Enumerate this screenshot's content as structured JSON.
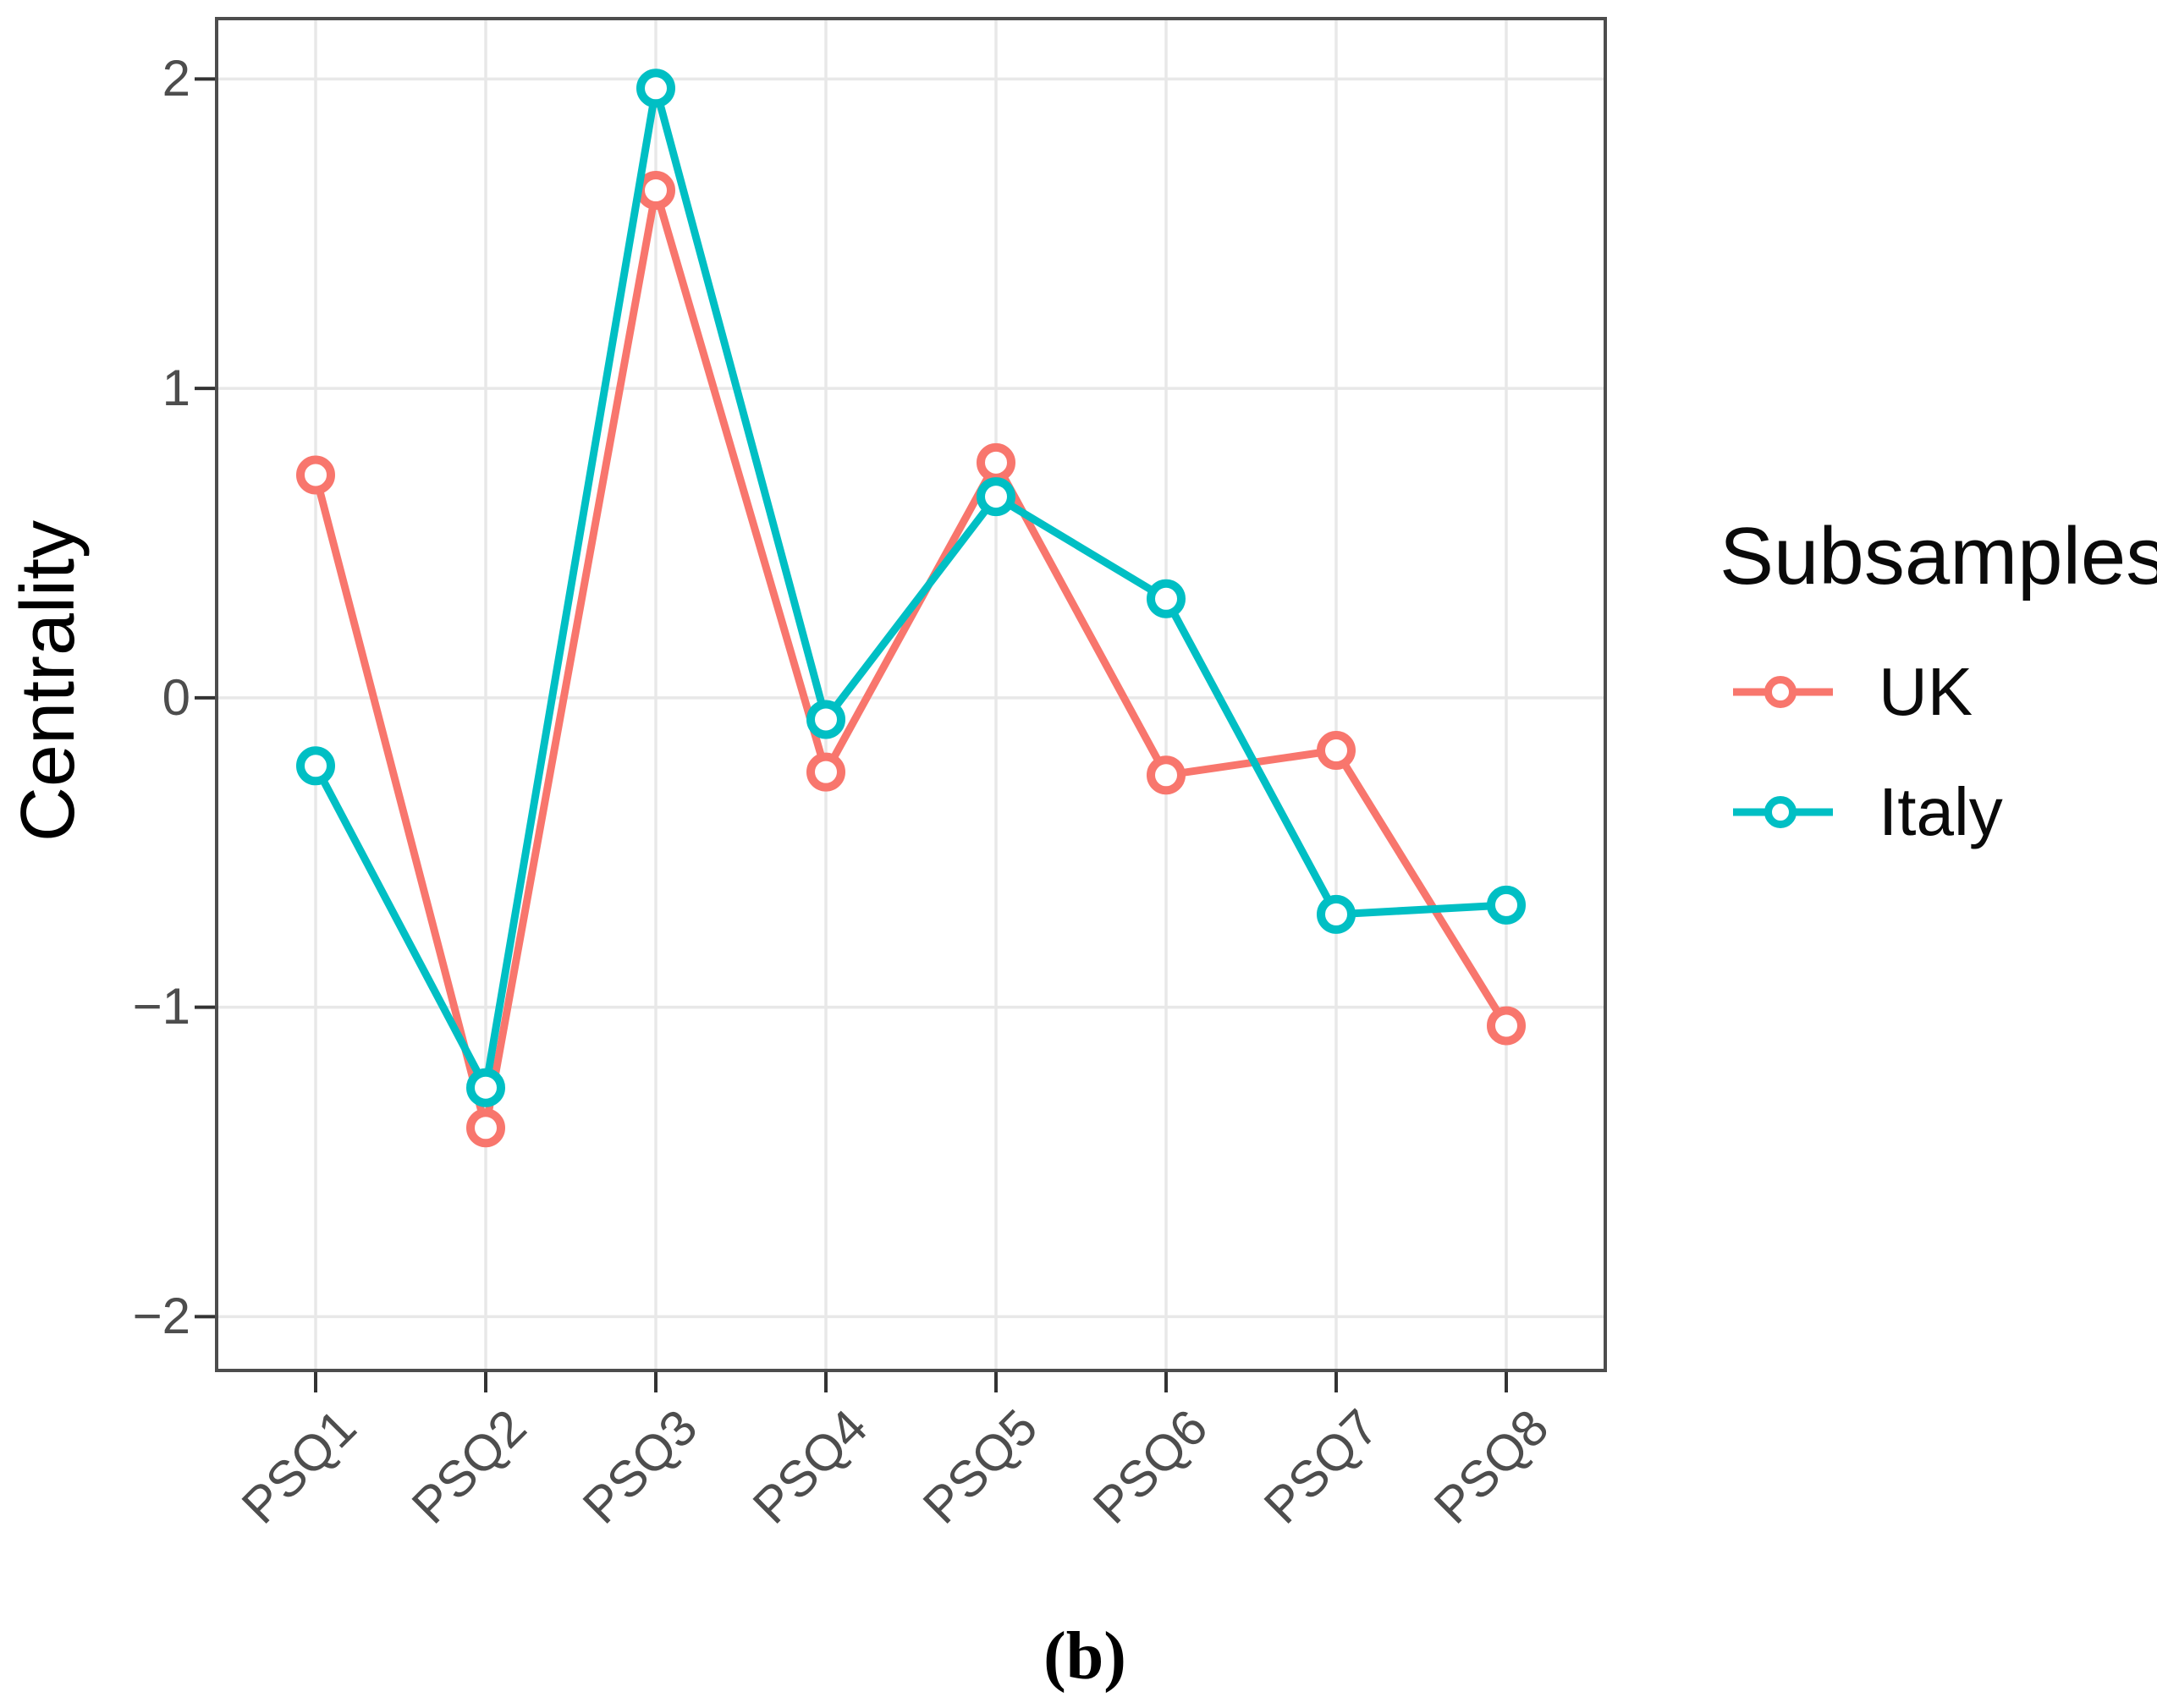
{
  "figure": {
    "caption": "(b)"
  },
  "y_axis": {
    "title": "Centrality",
    "tick_labels": [
      "2",
      "1",
      "0",
      "−1",
      "−2"
    ]
  },
  "x_axis": {
    "tick_labels": [
      "PSQ1",
      "PSQ2",
      "PSQ3",
      "PSQ4",
      "PSQ5",
      "PSQ6",
      "PSQ7",
      "PSQ8"
    ]
  },
  "legend": {
    "title": "Subsamples"
  },
  "chart_data": {
    "type": "line",
    "title": "",
    "xlabel": "",
    "ylabel": "Centrality",
    "categories": [
      "PSQ1",
      "PSQ2",
      "PSQ3",
      "PSQ4",
      "PSQ5",
      "PSQ6",
      "PSQ7",
      "PSQ8"
    ],
    "series": [
      {
        "name": "UK",
        "color": "#F8766D",
        "marker": "open-circle",
        "values": [
          0.72,
          -1.39,
          1.64,
          -0.24,
          0.76,
          -0.25,
          -0.17,
          -1.06
        ]
      },
      {
        "name": "Italy",
        "color": "#00BFC4",
        "marker": "open-circle",
        "values": [
          -0.22,
          -1.26,
          1.97,
          -0.07,
          0.65,
          0.32,
          -0.7,
          -0.67
        ]
      }
    ],
    "y_ticks": [
      2,
      1,
      0,
      -1,
      -2
    ],
    "ylim": [
      -2.174,
      2.195
    ],
    "grid": true,
    "panel_border": true,
    "legend_position": "right",
    "legend_title": "Subsamples"
  }
}
